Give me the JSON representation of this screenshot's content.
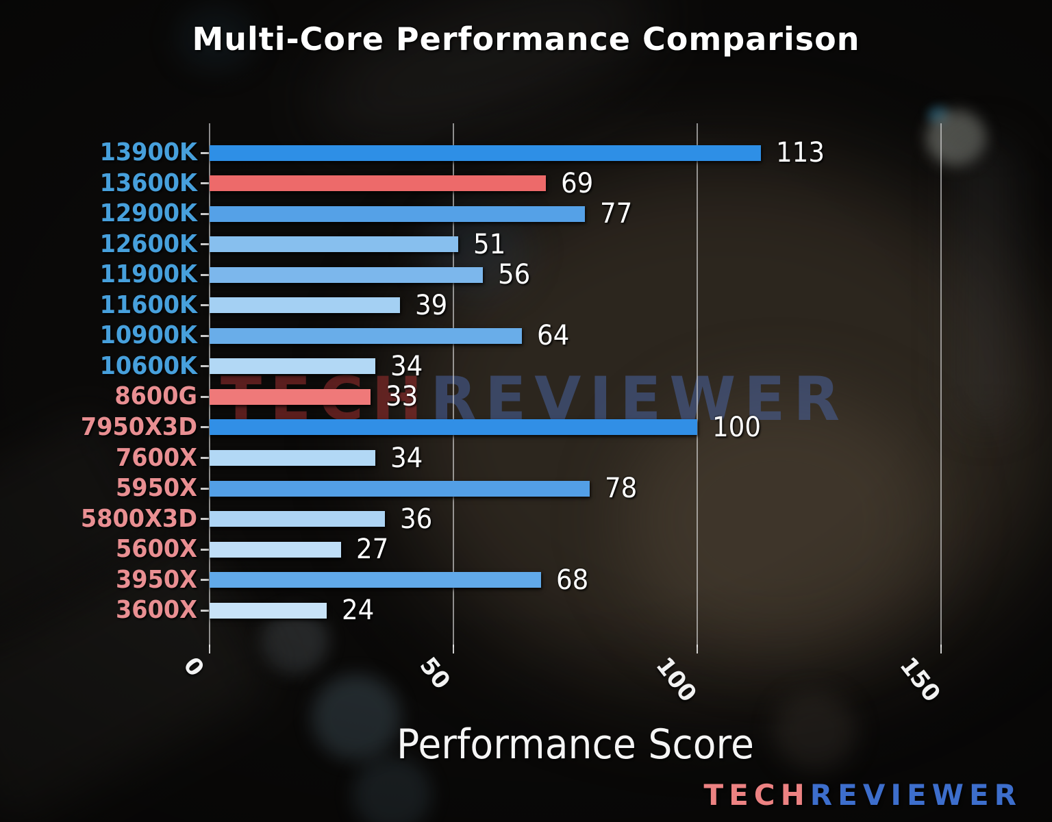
{
  "title": "Multi-Core Performance Comparison",
  "xlabel": "Performance Score",
  "watermark": {
    "tech": "TECH",
    "reviewer": "REVIEWER"
  },
  "logo": {
    "tech": "TECH",
    "reviewer": "REVIEWER"
  },
  "colors": {
    "intel_label": "#47a0dc",
    "amd_label": "#e98f92",
    "highlight_bar": "#ed6a6a",
    "grid": "rgba(228,228,228,0.6)",
    "watermark_tech": "rgba(158,48,48,0.55)",
    "watermark_reviewer": "rgba(72,98,158,0.55)",
    "logo_tech": "#ec8282",
    "logo_reviewer": "#3d6ecc"
  },
  "chart_data": {
    "type": "bar",
    "orientation": "horizontal",
    "title": "Multi-Core Performance Comparison",
    "xlabel": "Performance Score",
    "xlim": [
      0,
      152
    ],
    "xticks": [
      0,
      50,
      100,
      150
    ],
    "grid": true,
    "legend": false,
    "categories": [
      "13900K",
      "13600K",
      "12900K",
      "12600K",
      "11900K",
      "11600K",
      "10900K",
      "10600K",
      "8600G",
      "7950X3D",
      "7600X",
      "5950X",
      "5800X3D",
      "5600X",
      "3950X",
      "3600X"
    ],
    "values": [
      113,
      69,
      77,
      51,
      56,
      39,
      64,
      34,
      33,
      100,
      34,
      78,
      36,
      27,
      68,
      24
    ],
    "bars": [
      {
        "label": "13900K",
        "value": 113,
        "color": "#2e8fe6",
        "label_color": "#47a0dc",
        "brand": "intel",
        "highlighted": false
      },
      {
        "label": "13600K",
        "value": 69,
        "color": "#ed6a6a",
        "label_color": "#47a0dc",
        "brand": "intel",
        "highlighted": true
      },
      {
        "label": "12900K",
        "value": 77,
        "color": "#55a1e7",
        "label_color": "#47a0dc",
        "brand": "intel",
        "highlighted": false
      },
      {
        "label": "12600K",
        "value": 51,
        "color": "#87bfee",
        "label_color": "#47a0dc",
        "brand": "intel",
        "highlighted": false
      },
      {
        "label": "11900K",
        "value": 56,
        "color": "#7cb7ec",
        "label_color": "#47a0dc",
        "brand": "intel",
        "highlighted": false
      },
      {
        "label": "11600K",
        "value": 39,
        "color": "#a4d0f3",
        "label_color": "#47a0dc",
        "brand": "intel",
        "highlighted": false
      },
      {
        "label": "10900K",
        "value": 64,
        "color": "#69ade9",
        "label_color": "#47a0dc",
        "brand": "intel",
        "highlighted": false
      },
      {
        "label": "10600K",
        "value": 34,
        "color": "#b2d8f5",
        "label_color": "#47a0dc",
        "brand": "intel",
        "highlighted": false
      },
      {
        "label": "8600G",
        "value": 33,
        "color": "#ef7979",
        "label_color": "#e98f92",
        "brand": "amd",
        "highlighted": true
      },
      {
        "label": "7950X3D",
        "value": 100,
        "color": "#318fe6",
        "label_color": "#e98f92",
        "brand": "amd",
        "highlighted": false
      },
      {
        "label": "7600X",
        "value": 34,
        "color": "#b2d8f5",
        "label_color": "#e98f92",
        "brand": "amd",
        "highlighted": false
      },
      {
        "label": "5950X",
        "value": 78,
        "color": "#539fe6",
        "label_color": "#e98f92",
        "brand": "amd",
        "highlighted": false
      },
      {
        "label": "5800X3D",
        "value": 36,
        "color": "#add4f4",
        "label_color": "#e98f92",
        "brand": "amd",
        "highlighted": false
      },
      {
        "label": "5600X",
        "value": 27,
        "color": "#bfdef7",
        "label_color": "#e98f92",
        "brand": "amd",
        "highlighted": false
      },
      {
        "label": "3950X",
        "value": 68,
        "color": "#61a9e9",
        "label_color": "#e98f92",
        "brand": "amd",
        "highlighted": false
      },
      {
        "label": "3600X",
        "value": 24,
        "color": "#c8e3f8",
        "label_color": "#e98f92",
        "brand": "amd",
        "highlighted": false
      }
    ]
  }
}
